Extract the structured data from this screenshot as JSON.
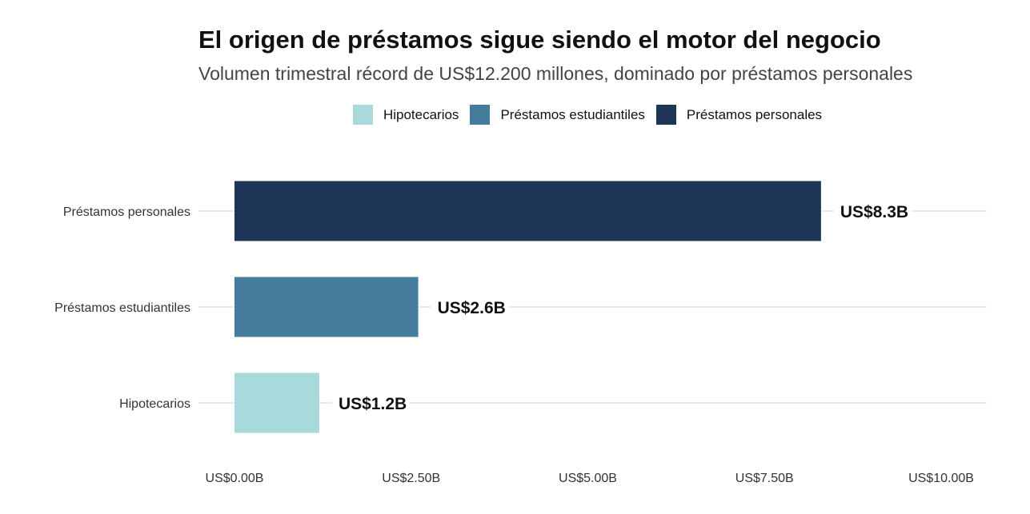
{
  "chart_data": {
    "type": "bar",
    "orientation": "horizontal",
    "title": "El origen de préstamos sigue siendo el motor del negocio",
    "subtitle": "Volumen trimestral récord de US$12.200 millones, dominado por préstamos personales",
    "categories": [
      "Préstamos personales",
      "Préstamos estudiantiles",
      "Hipotecarios"
    ],
    "values": [
      8.3,
      2.6,
      1.2
    ],
    "data_labels": [
      "US$8.3B",
      "US$2.6B",
      "US$1.2B"
    ],
    "colors": [
      "#1D3557",
      "#457B9D",
      "#A8DADC"
    ],
    "xlim": [
      0,
      10
    ],
    "xticks": [
      0,
      2.5,
      5,
      7.5,
      10
    ],
    "xtick_labels": [
      "US$0.00B",
      "US$2.50B",
      "US$5.00B",
      "US$7.50B",
      "US$10.00B"
    ],
    "xlabel": "",
    "ylabel": "",
    "grid": "horizontal major",
    "legend": {
      "position": "top",
      "entries": [
        {
          "label": "Hipotecarios",
          "color": "#A8DADC"
        },
        {
          "label": "Préstamos estudiantiles",
          "color": "#457B9D"
        },
        {
          "label": "Préstamos personales",
          "color": "#1D3557"
        }
      ]
    }
  }
}
